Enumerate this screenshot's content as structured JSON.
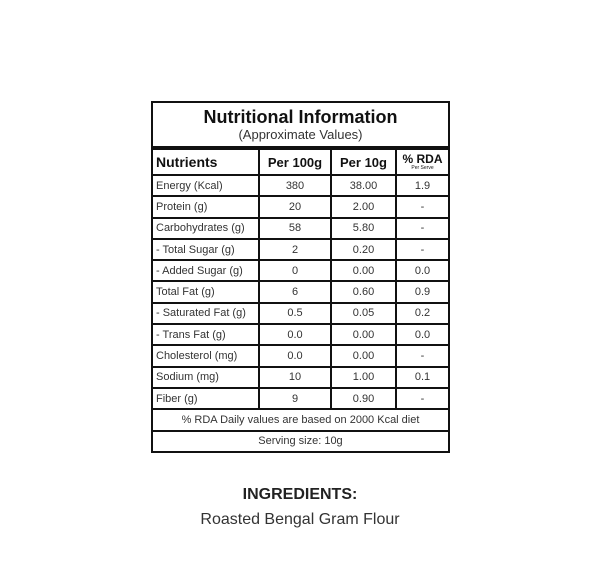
{
  "label": {
    "title": "Nutritional Information",
    "subtitle": "(Approximate Values)",
    "headers": {
      "nutrients": "Nutrients",
      "per100": "Per 100g",
      "per10": "Per 10g",
      "rda": "% RDA",
      "rda_sub": "Per Serve"
    },
    "rows": [
      {
        "name": "Energy (Kcal)",
        "per100": "380",
        "per10": "38.00",
        "rda": "1.9"
      },
      {
        "name": "Protein (g)",
        "per100": "20",
        "per10": "2.00",
        "rda": "-"
      },
      {
        "name": "Carbohydrates (g)",
        "per100": "58",
        "per10": "5.80",
        "rda": "-"
      },
      {
        "name": "- Total Sugar (g)",
        "per100": "2",
        "per10": "0.20",
        "rda": "-"
      },
      {
        "name": "- Added Sugar (g)",
        "per100": "0",
        "per10": "0.00",
        "rda": "0.0"
      },
      {
        "name": "Total Fat (g)",
        "per100": "6",
        "per10": "0.60",
        "rda": "0.9"
      },
      {
        "name": "- Saturated Fat (g)",
        "per100": "0.5",
        "per10": "0.05",
        "rda": "0.2"
      },
      {
        "name": "- Trans Fat (g)",
        "per100": "0.0",
        "per10": "0.00",
        "rda": "0.0"
      },
      {
        "name": "Cholesterol (mg)",
        "per100": "0.0",
        "per10": "0.00",
        "rda": "-"
      },
      {
        "name": "Sodium (mg)",
        "per100": "10",
        "per10": "1.00",
        "rda": "0.1"
      },
      {
        "name": "Fiber (g)",
        "per100": "9",
        "per10": "0.90",
        "rda": "-"
      }
    ],
    "rda_note": "% RDA Daily values are based on 2000 Kcal diet",
    "serving_size": "Serving size: 10g"
  },
  "ingredients": {
    "heading": "INGREDIENTS:",
    "text": "Roasted Bengal Gram Flour"
  }
}
